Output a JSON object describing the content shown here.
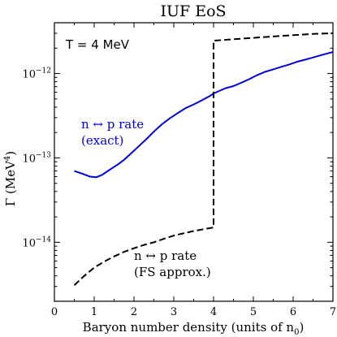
{
  "chart_data": {
    "type": "line",
    "title": "IUF EoS",
    "xlabel": "Baryon number density (units of n",
    "xlabel_sub": "0",
    "xlabel_close": ")",
    "ylabel": "Γ (MeV",
    "ylabel_sup": "4",
    "ylabel_close": ")",
    "xlim": [
      0,
      7
    ],
    "ylim": [
      2e-15,
      4e-12
    ],
    "yscale": "log",
    "grid": false,
    "x_ticks": [
      0,
      1,
      2,
      3,
      4,
      5,
      6,
      7
    ],
    "y_ticks": [
      {
        "value": 1e-14,
        "base": "10",
        "exp": "−14"
      },
      {
        "value": 1e-13,
        "base": "10",
        "exp": "−13"
      },
      {
        "value": 1e-12,
        "base": "10",
        "exp": "−12"
      }
    ],
    "annotation": "T = 4 MeV",
    "series": [
      {
        "label_lines": [
          "n ↔ p rate",
          "(exact)"
        ],
        "color": "#0000dd",
        "style": "solid",
        "x": [
          0.5,
          0.7,
          0.9,
          1.05,
          1.2,
          1.4,
          1.6,
          1.75,
          1.9,
          2.1,
          2.3,
          2.5,
          2.7,
          2.9,
          3.1,
          3.3,
          3.5,
          3.7,
          3.9,
          4.0,
          4.1,
          4.3,
          4.5,
          4.7,
          4.9,
          5.1,
          5.3,
          5.5,
          5.7,
          5.9,
          6.1,
          6.3,
          6.5,
          6.7,
          6.9,
          7.0
        ],
        "y": [
          7e-14,
          6.5e-14,
          6e-14,
          5.9e-14,
          6.3e-14,
          7.3e-14,
          8.4e-14,
          9.5e-14,
          1.1e-13,
          1.35e-13,
          1.65e-13,
          2.05e-13,
          2.5e-13,
          2.95e-13,
          3.4e-13,
          3.9e-13,
          4.3e-13,
          4.8e-13,
          5.4e-13,
          5.8e-13,
          6.1e-13,
          6.7e-13,
          7.1e-13,
          7.8e-13,
          8.6e-13,
          9.6e-13,
          1.05e-12,
          1.12e-12,
          1.2e-12,
          1.28e-12,
          1.38e-12,
          1.46e-12,
          1.55e-12,
          1.65e-12,
          1.75e-12,
          1.8e-12
        ]
      },
      {
        "label_lines": [
          "n ↔ p rate",
          "(FS approx.)"
        ],
        "color": "#000000",
        "style": "dashed",
        "x": [
          0.5,
          0.75,
          1.0,
          1.25,
          1.5,
          1.75,
          2.0,
          2.25,
          2.5,
          2.75,
          3.0,
          3.25,
          3.5,
          3.75,
          4.0,
          4.0,
          4.25,
          4.5,
          4.75,
          5.0,
          5.5,
          6.0,
          6.5,
          7.0
        ],
        "y": [
          3.1e-15,
          4e-15,
          5e-15,
          5.9e-15,
          6.8e-15,
          7.7e-15,
          8.5e-15,
          9.3e-15,
          1e-14,
          1.1e-14,
          1.2e-14,
          1.28e-14,
          1.36e-14,
          1.43e-14,
          1.5e-14,
          2.45e-12,
          2.5e-12,
          2.55e-12,
          2.6e-12,
          2.65e-12,
          2.75e-12,
          2.85e-12,
          2.95e-12,
          3e-12
        ]
      }
    ]
  }
}
